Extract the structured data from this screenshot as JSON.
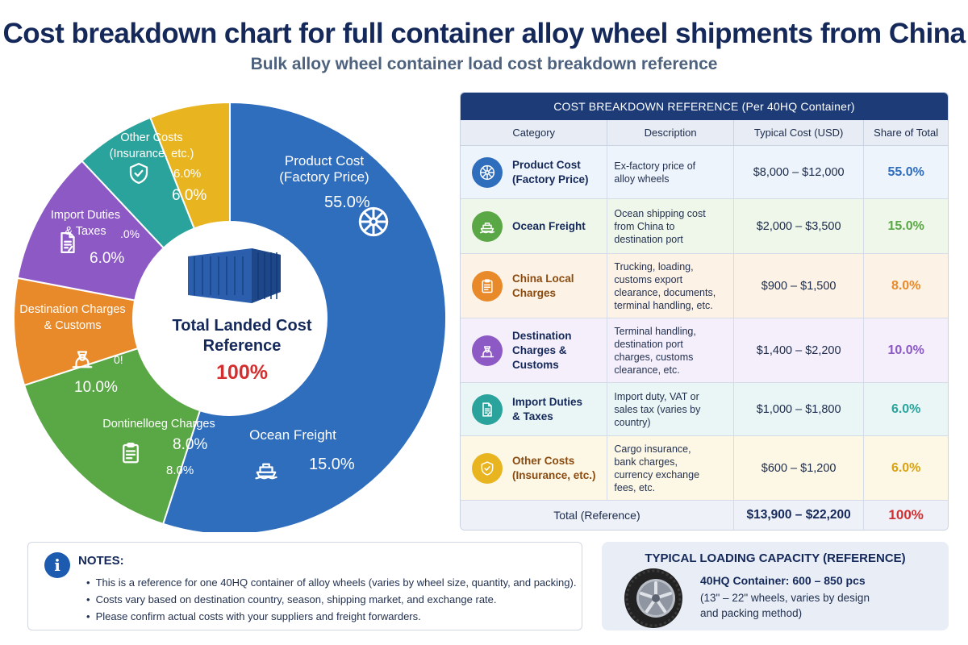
{
  "title": "Cost breakdown chart for full container alloy wheel shipments from China",
  "subtitle": "Bulk alloy wheel container load cost breakdown reference",
  "center": {
    "line1": "Total Landed Cost",
    "line2": "Reference",
    "value": "100%"
  },
  "chart_data": {
    "type": "pie",
    "title": "Cost breakdown chart for full container alloy wheel shipments from China",
    "subtitle": "Bulk alloy wheel container load cost breakdown reference",
    "categories": [
      "Product Cost (Factory Price)",
      "Ocean Freight",
      "China Local Charges",
      "Destination Charges & Customs",
      "Import Duties & Taxes",
      "Other Costs (Insurance, etc.)"
    ],
    "values": [
      55.0,
      15.0,
      8.0,
      10.0,
      6.0,
      6.0
    ],
    "slices": [
      {
        "label_lines": [
          "Product Cost",
          "(Factory Price)"
        ],
        "value": 55.0,
        "pct": "55.0%",
        "color": "#2f6dbd",
        "icon": "wheel-icon"
      },
      {
        "label_lines": [
          "Ocean Freight"
        ],
        "value": 15.0,
        "pct": "15.0%",
        "color": "#5aa745",
        "icon": "ship-icon"
      },
      {
        "label_lines": [
          "Dontinelloeg Charges"
        ],
        "value": 8.0,
        "pct": "8.0%",
        "pct2": "8.0%",
        "color": "#e98a2a",
        "icon": "clipboard-icon"
      },
      {
        "label_lines": [
          "Destination Charges",
          "& Customs"
        ],
        "value": 10.0,
        "pct": "10.0%",
        "extra": "0!",
        "color": "#8d59c5",
        "icon": "officer-icon"
      },
      {
        "label_lines": [
          "Import Duties",
          "& Taxes"
        ],
        "value": 6.0,
        "pct": "6.0%",
        "extra": ".0%",
        "color": "#2aa39c",
        "icon": "document-icon"
      },
      {
        "label_lines": [
          "Other Costs",
          "(Insurance, etc.)"
        ],
        "value": 6.0,
        "pct": "6.0%",
        "pct2": "6.0%",
        "color": "#e8b521",
        "icon": "shield-icon"
      }
    ]
  },
  "table": {
    "title": "COST BREAKDOWN REFERENCE (Per 40HQ Container)",
    "headers": [
      "Category",
      "Description",
      "Typical Cost (USD)",
      "Share of Total"
    ],
    "rows": [
      {
        "name_lines": [
          "Product Cost",
          "(Factory Price)"
        ],
        "desc_lines": [
          "Ex-factory price of",
          "alloy wheels"
        ],
        "cost": "$8,000 – $12,000",
        "share": "55.0%",
        "color": "#2f6dbd",
        "bg": "#eef4fb",
        "icon": "wheel-icon",
        "height": 66
      },
      {
        "name_lines": [
          "Ocean Freight"
        ],
        "desc_lines": [
          "Ocean shipping cost",
          "from China to",
          "destination port"
        ],
        "cost": "$2,000 – $3,500",
        "share": "15.0%",
        "color": "#5aa745",
        "bg": "#eff7ea",
        "icon": "ship-icon",
        "height": 68
      },
      {
        "name_lines": [
          "China Local",
          "Charges"
        ],
        "desc_lines": [
          "Trucking, loading,",
          "customs export",
          "clearance, documents,",
          "terminal handling, etc."
        ],
        "cost": "$900 – $1,500",
        "share": "8.0%",
        "color": "#e98a2a",
        "bg": "#fdf2e6",
        "icon": "clipboard-icon",
        "height": 80
      },
      {
        "name_lines": [
          "Destination",
          "Charges & Customs"
        ],
        "desc_lines": [
          "Terminal handling,",
          "destination port",
          "charges, customs",
          "clearance, etc."
        ],
        "cost": "$1,400 – $2,200",
        "share": "10.0%",
        "color": "#8d59c5",
        "bg": "#f4effb",
        "icon": "officer-icon",
        "height": 80
      },
      {
        "name_lines": [
          "Import Duties",
          "& Taxes"
        ],
        "desc_lines": [
          "Import duty, VAT or",
          "sales tax (varies by",
          "country)"
        ],
        "cost": "$1,000 – $1,800",
        "share": "6.0%",
        "color": "#2aa39c",
        "bg": "#eaf6f5",
        "icon": "document-icon",
        "height": 66
      },
      {
        "name_lines": [
          "Other Costs",
          "(Insurance, etc.)"
        ],
        "desc_lines": [
          "Cargo insurance,",
          "bank charges,",
          "currency exchange",
          "fees, etc."
        ],
        "cost": "$600 – $1,200",
        "share": "6.0%",
        "color": "#e8b521",
        "bg": "#fdf8e6",
        "icon": "shield-icon",
        "height": 80
      }
    ],
    "total": {
      "label": "Total (Reference)",
      "cost": "$13,900 – $22,200",
      "share": "100%"
    }
  },
  "notes": {
    "title": "NOTES:",
    "items": [
      "This is a reference for one 40HQ container of alloy wheels (varies by wheel size, quantity, and packing).",
      "Costs vary based on destination country, season, shipping market, and exchange rate.",
      "Please confirm actual costs with your suppliers and freight forwarders."
    ]
  },
  "capacity": {
    "title": "TYPICAL LOADING CAPACITY (REFERENCE)",
    "main": "40HQ Container: 600 – 850 pcs",
    "sub_lines": [
      "(13\" – 22\" wheels, varies by design",
      "and packing method)"
    ]
  },
  "colors": {
    "navy": "#14285a",
    "header": "#1c3b77",
    "total_share": "#d32f2f"
  }
}
